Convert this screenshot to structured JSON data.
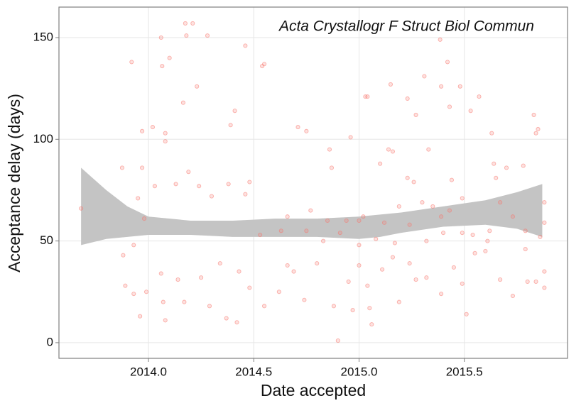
{
  "chart_data": {
    "type": "scatter",
    "annotation": "Acta Crystallogr F Struct Biol Commun",
    "x_label": "Date accepted",
    "y_label": "Acceptance delay (days)",
    "color": "#f8766d",
    "band_color": "#c4c4c4",
    "grid": true,
    "xlim": [
      2013.575,
      2015.99
    ],
    "ylim": [
      -7.7,
      165
    ],
    "xticks": [
      {
        "value": 2014,
        "label": "2014.0"
      },
      {
        "value": 2014.5,
        "label": "2014.5"
      },
      {
        "value": 2015,
        "label": "2015.0"
      },
      {
        "value": 2015.5,
        "label": "2015.5"
      }
    ],
    "yticks": [
      0,
      50,
      100,
      150
    ],
    "x": [
      2013.68,
      2013.875,
      2013.92,
      2014.06,
      2014.065,
      2014.1,
      2014.175,
      2014.21,
      2014.18,
      2014.23,
      2014.28,
      2014.46,
      2014.54,
      2014.55,
      2014.165,
      2014.41,
      2014.39,
      2014.08,
      2014.02,
      2013.97,
      2013.97,
      2014.08,
      2014.71,
      2014.75,
      2014.86,
      2014.87,
      2014.96,
      2015.03,
      2015.04,
      2015.15,
      2015.23,
      2015.27,
      2015.31,
      2015.39,
      2015.385,
      2015.42,
      2015.43,
      2015.48,
      2015.53,
      2015.57,
      2015.63,
      2015.84,
      2015.83,
      2015.85,
      2015.78,
      2015.7,
      2015.64,
      2015.65,
      2015.33,
      2015.14,
      2015.16,
      2015.1,
      2015.26,
      2015.23,
      2015.49,
      2015.44,
      2015.43,
      2015.39,
      2015.35,
      2015.3,
      2015.19,
      2015.12,
      2015.02,
      2015.0,
      2014.94,
      2014.85,
      2014.77,
      2014.66,
      2014.63,
      2014.53,
      2014.46,
      2014.48,
      2014.38,
      2014.3,
      2014.24,
      2014.19,
      2014.13,
      2014.03,
      2013.95,
      2013.98,
      2013.93,
      2013.88,
      2013.89,
      2013.93,
      2013.96,
      2013.99,
      2014.06,
      2014.08,
      2014.07,
      2014.17,
      2014.14,
      2014.25,
      2014.29,
      2014.34,
      2014.37,
      2014.42,
      2014.43,
      2014.48,
      2014.55,
      2014.62,
      2014.66,
      2014.69,
      2014.74,
      2014.8,
      2014.88,
      2014.9,
      2014.95,
      2014.97,
      2015.0,
      2015.04,
      2015.06,
      2015.05,
      2015.11,
      2015.16,
      2015.19,
      2015.24,
      2015.27,
      2015.32,
      2015.39,
      2015.45,
      2015.49,
      2015.51,
      2015.55,
      2015.6,
      2015.67,
      2015.73,
      2015.79,
      2015.8,
      2015.84,
      2015.88,
      2015.88,
      2015.88,
      2015.88,
      2015.86,
      2015.79,
      2015.73,
      2015.67,
      2015.62,
      2015.61,
      2015.54,
      2015.49,
      2015.4,
      2015.32,
      2015.24,
      2015.17,
      2015.08,
      2015.0,
      2014.91,
      2014.83,
      2014.75
    ],
    "values": [
      66,
      86,
      138,
      150,
      136,
      140,
      157,
      157,
      151,
      126,
      151,
      146,
      136,
      137,
      118,
      114,
      107,
      103,
      106,
      104,
      86,
      99,
      106,
      104,
      95,
      86,
      101,
      121,
      121,
      127,
      120,
      112,
      131,
      126,
      149,
      138,
      116,
      126,
      114,
      121,
      103,
      103,
      112,
      105,
      87,
      86,
      88,
      81,
      95,
      95,
      94,
      88,
      79,
      81,
      71,
      80,
      65,
      62,
      67,
      69,
      67,
      59,
      62,
      60,
      60,
      60,
      65,
      62,
      55,
      53,
      73,
      79,
      78,
      72,
      77,
      84,
      78,
      77,
      71,
      61,
      48,
      43,
      28,
      24,
      13,
      25,
      34,
      11,
      20,
      20,
      31,
      32,
      18,
      39,
      12,
      10,
      35,
      27,
      18,
      25,
      38,
      35,
      21,
      39,
      18,
      1,
      30,
      16,
      38,
      28,
      9,
      17,
      36,
      42,
      20,
      39,
      31,
      32,
      24,
      37,
      29,
      14,
      44,
      45,
      31,
      23,
      46,
      30,
      30,
      27,
      35,
      69,
      59,
      52,
      55,
      62,
      69,
      55,
      50,
      53,
      54,
      54,
      50,
      58,
      49,
      51,
      48,
      54,
      50,
      55
    ],
    "band": {
      "x": [
        2013.68,
        2013.8,
        2013.9,
        2014.0,
        2014.2,
        2014.4,
        2014.6,
        2014.8,
        2015.0,
        2015.1,
        2015.2,
        2015.4,
        2015.6,
        2015.75,
        2015.87
      ],
      "upper": [
        86,
        75,
        67,
        62,
        60,
        60,
        61,
        61,
        62,
        63,
        64,
        67,
        70,
        74,
        78
      ],
      "lower": [
        48,
        51,
        52,
        53,
        53,
        52,
        52,
        52,
        51,
        52,
        54,
        57,
        58,
        56,
        52
      ]
    }
  }
}
